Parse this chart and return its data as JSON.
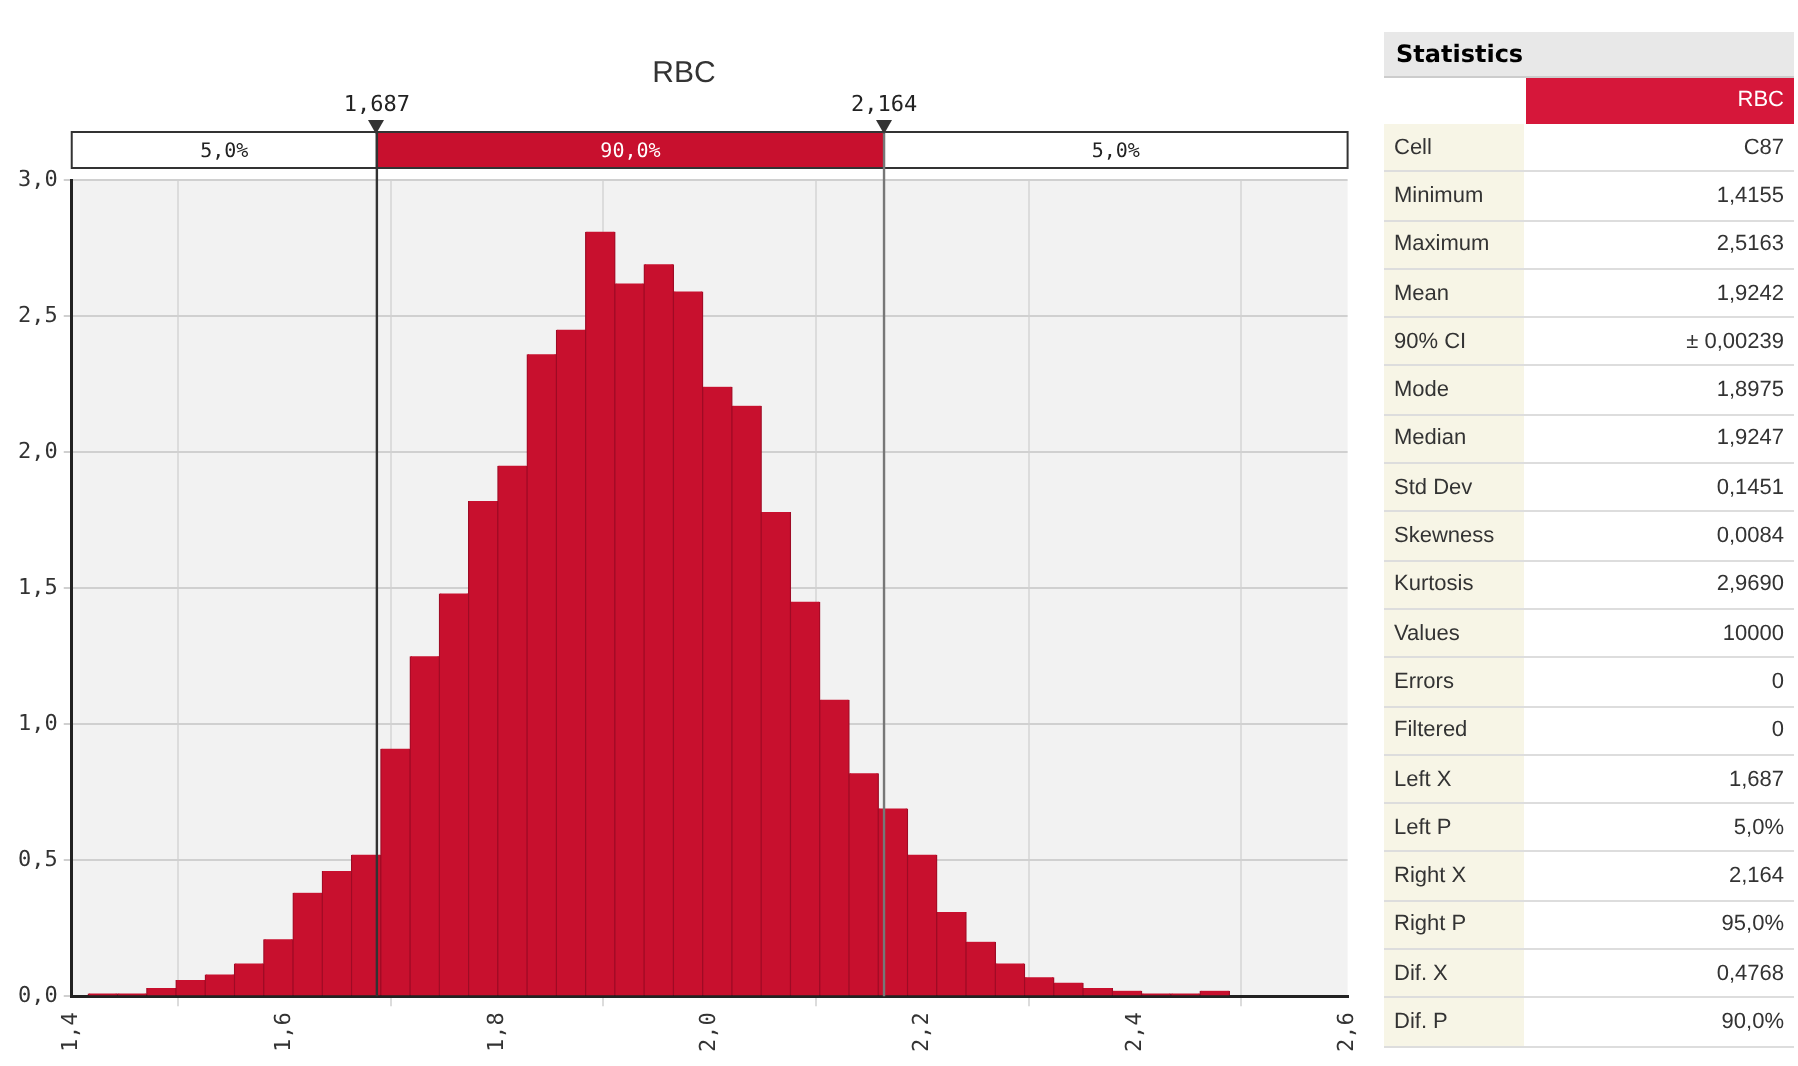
{
  "chart_data": [
    {
      "type": "histogram",
      "title": "RBC",
      "bins": [
        1.4155,
        1.443,
        1.4706,
        1.4981,
        1.5256,
        1.5531,
        1.5806,
        1.6082,
        1.6357,
        1.6632,
        1.6907,
        1.7183,
        1.7458,
        1.7733,
        1.8008,
        1.8283,
        1.8559,
        1.8834,
        1.9109,
        1.9384,
        1.9659,
        1.9935,
        2.021,
        2.0485,
        2.076,
        2.1036,
        2.1311,
        2.1586,
        2.1861,
        2.2136,
        2.2412,
        2.2687,
        2.2962,
        2.3237,
        2.3512,
        2.3788,
        2.4063,
        2.4338,
        2.4613,
        2.4888,
        2.5163
      ],
      "values": [
        0.01,
        0.01,
        0.03,
        0.06,
        0.08,
        0.12,
        0.21,
        0.38,
        0.46,
        0.52,
        0.91,
        1.25,
        1.48,
        1.82,
        1.95,
        2.36,
        2.45,
        2.81,
        2.62,
        2.69,
        2.59,
        2.24,
        2.17,
        1.78,
        1.45,
        1.09,
        0.82,
        0.69,
        0.52,
        0.31,
        0.2,
        0.12,
        0.07,
        0.05,
        0.03,
        0.02,
        0.01,
        0.01,
        0.02,
        0
      ],
      "color": "#c8102e",
      "xlim": [
        1.4,
        2.6
      ],
      "xticks": [
        {
          "value": 1.4,
          "label": "1,4"
        },
        {
          "value": 1.6,
          "label": "1,6"
        },
        {
          "value": 1.8,
          "label": "1,8"
        },
        {
          "value": 2.0,
          "label": "2,0"
        },
        {
          "value": 2.2,
          "label": "2,2"
        },
        {
          "value": 2.4,
          "label": "2,4"
        },
        {
          "value": 2.6,
          "label": "2,6"
        }
      ],
      "ylim": [
        0,
        3
      ],
      "yticks": [
        {
          "value": 0,
          "label": "0,0"
        },
        {
          "value": 0.5,
          "label": "0,5"
        },
        {
          "value": 1,
          "label": "1,0"
        },
        {
          "value": 1.5,
          "label": "1,5"
        },
        {
          "value": 2,
          "label": "2,0"
        },
        {
          "value": 2.5,
          "label": "2,5"
        },
        {
          "value": 3,
          "label": "3,0"
        }
      ],
      "ref_lines": [
        {
          "axis": "x",
          "value": 1.687,
          "label": "1,687",
          "color": "#333333"
        },
        {
          "axis": "x",
          "value": 2.164,
          "label": "2,164",
          "color": "#777777"
        }
      ],
      "annotations": [
        "5,0%",
        "90,0%",
        "5,0%"
      ],
      "grid": true,
      "legend": false
    },
    {
      "type": "other",
      "title": "Statistics",
      "categories": [
        "Cell",
        "Minimum",
        "Maximum",
        "Mean",
        "90% CI",
        "Mode",
        "Median",
        "Std Dev",
        "Skewness",
        "Kurtosis",
        "Values",
        "Errors",
        "Filtered",
        "Left X",
        "Left P",
        "Right X",
        "Right P",
        "Dif. X",
        "Dif. P"
      ],
      "subtitle": "RBC",
      "annotations": [
        "C87",
        "1,4155",
        "2,5163",
        "1,9242",
        "± 0,00239",
        "1,8975",
        "1,9247",
        "0,1451",
        "0,0084",
        "2,9690",
        "10000",
        "0",
        "0",
        "1,687",
        "5,0%",
        "2,164",
        "95,0%",
        "0,4768",
        "90,0%"
      ]
    }
  ]
}
